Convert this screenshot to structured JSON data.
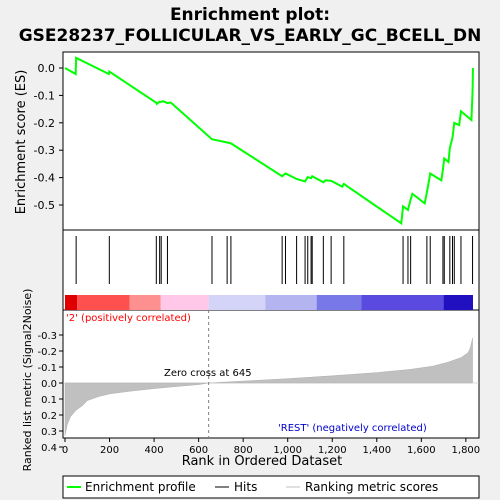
{
  "chart_data": {
    "type": "line",
    "title": "Enrichment plot: GSE28237_FOLLICULAR_VS_EARLY_GC_BCELL_DN",
    "colors": {
      "line": "#00ff00",
      "hits": "#000000",
      "metric_fill": "#c0c0c0",
      "pos_label": "#ff0000",
      "neg_label": "#0000cc",
      "zero_line": "#808080"
    },
    "es_panel": {
      "ylabel": "Enrichment score (ES)",
      "ylim": [
        -0.6,
        0.05
      ],
      "yticks": [
        0.0,
        -0.1,
        -0.2,
        -0.3,
        -0.4,
        -0.5
      ],
      "ytick_labels": [
        "0.0",
        "-0.1",
        "-0.2",
        "-0.3",
        "-0.4",
        "-0.5"
      ],
      "grid": false,
      "points": [
        [
          0,
          0.0
        ],
        [
          48,
          -0.022
        ],
        [
          50,
          0.037
        ],
        [
          197,
          -0.022
        ],
        [
          199,
          -0.013
        ],
        [
          410,
          -0.127
        ],
        [
          412,
          -0.131
        ],
        [
          425,
          -0.123
        ],
        [
          432,
          -0.124
        ],
        [
          440,
          -0.121
        ],
        [
          460,
          -0.128
        ],
        [
          475,
          -0.126
        ],
        [
          660,
          -0.26
        ],
        [
          728,
          -0.272
        ],
        [
          745,
          -0.275
        ],
        [
          975,
          -0.395
        ],
        [
          990,
          -0.385
        ],
        [
          1040,
          -0.405
        ],
        [
          1078,
          -0.414
        ],
        [
          1090,
          -0.398
        ],
        [
          1105,
          -0.402
        ],
        [
          1110,
          -0.395
        ],
        [
          1160,
          -0.417
        ],
        [
          1170,
          -0.41
        ],
        [
          1195,
          -0.412
        ],
        [
          1245,
          -0.433
        ],
        [
          1252,
          -0.423
        ],
        [
          1510,
          -0.567
        ],
        [
          1518,
          -0.505
        ],
        [
          1540,
          -0.518
        ],
        [
          1552,
          -0.48
        ],
        [
          1560,
          -0.459
        ],
        [
          1615,
          -0.494
        ],
        [
          1625,
          -0.454
        ],
        [
          1640,
          -0.385
        ],
        [
          1690,
          -0.41
        ],
        [
          1697,
          -0.37
        ],
        [
          1703,
          -0.33
        ],
        [
          1722,
          -0.343
        ],
        [
          1728,
          -0.292
        ],
        [
          1740,
          -0.254
        ],
        [
          1748,
          -0.2
        ],
        [
          1770,
          -0.208
        ],
        [
          1778,
          -0.158
        ],
        [
          1825,
          -0.19
        ],
        [
          1830,
          -0.085
        ],
        [
          1832,
          0.0
        ]
      ]
    },
    "hits_panel": {
      "positions": [
        50,
        199,
        410,
        425,
        432,
        460,
        660,
        728,
        745,
        975,
        990,
        1040,
        1078,
        1090,
        1105,
        1110,
        1160,
        1195,
        1252,
        1518,
        1540,
        1552,
        1625,
        1640,
        1697,
        1703,
        1728,
        1740,
        1748,
        1778,
        1830
      ]
    },
    "heatmap_bar": {
      "segments": [
        {
          "from": 0,
          "to": 55,
          "color": "#e00000"
        },
        {
          "from": 55,
          "to": 290,
          "color": "#ff5050"
        },
        {
          "from": 290,
          "to": 430,
          "color": "#ff9090"
        },
        {
          "from": 430,
          "to": 645,
          "color": "#ffc8e8"
        },
        {
          "from": 645,
          "to": 900,
          "color": "#d4d4f8"
        },
        {
          "from": 900,
          "to": 1130,
          "color": "#b4b4f0"
        },
        {
          "from": 1130,
          "to": 1330,
          "color": "#7878e8"
        },
        {
          "from": 1330,
          "to": 1700,
          "color": "#5a4ae0"
        },
        {
          "from": 1700,
          "to": 1850,
          "color": "#2010c0"
        }
      ]
    },
    "metric_panel": {
      "ylabel": "Ranked list metric (Signal2Noise)",
      "ylim": [
        -0.3,
        0.45
      ],
      "yticks": [
        0.4,
        0.3,
        0.2,
        0.1,
        0.0,
        -0.1,
        -0.2,
        -0.3
      ],
      "ytick_labels": [
        "0.4",
        "0.3",
        "0.2",
        "0.1",
        "0.0",
        "-0.1",
        "-0.2",
        "-0.3"
      ],
      "points": [
        [
          0,
          0.33
        ],
        [
          10,
          0.26
        ],
        [
          25,
          0.21
        ],
        [
          50,
          0.17
        ],
        [
          80,
          0.14
        ],
        [
          100,
          0.11
        ],
        [
          150,
          0.085
        ],
        [
          200,
          0.068
        ],
        [
          300,
          0.05
        ],
        [
          400,
          0.035
        ],
        [
          500,
          0.022
        ],
        [
          600,
          0.01
        ],
        [
          645,
          0.0
        ],
        [
          800,
          -0.012
        ],
        [
          1000,
          -0.027
        ],
        [
          1200,
          -0.045
        ],
        [
          1400,
          -0.065
        ],
        [
          1550,
          -0.085
        ],
        [
          1650,
          -0.105
        ],
        [
          1720,
          -0.13
        ],
        [
          1780,
          -0.16
        ],
        [
          1810,
          -0.19
        ],
        [
          1820,
          -0.22
        ],
        [
          1830,
          -0.28
        ]
      ],
      "zero_cross_label": "Zero cross at 645",
      "zero_cross": 645,
      "pos_label": "'2' (positively correlated)",
      "neg_label": "'REST' (negatively correlated)"
    },
    "xaxis": {
      "xlabel": "Rank in Ordered Dataset",
      "xlim": [
        0,
        1850
      ],
      "xticks": [
        0,
        200,
        400,
        600,
        800,
        1000,
        1200,
        1400,
        1600,
        1800
      ],
      "xtick_labels": [
        "0",
        "200",
        "400",
        "600",
        "800",
        "1,000",
        "1,200",
        "1,400",
        "1,600",
        "1,800"
      ]
    },
    "legend": {
      "placement": "bottom",
      "items": [
        "Enrichment profile",
        "Hits",
        "Ranking metric scores"
      ]
    }
  }
}
